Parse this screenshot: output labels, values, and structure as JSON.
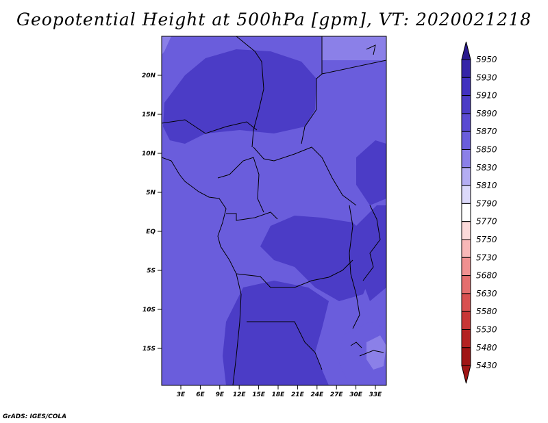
{
  "title": "Geopotential Height at 500hPa [gpm], VT: 2020021218",
  "credit": "GrADS: IGES/COLA",
  "map": {
    "lat_labels": [
      "20N",
      "15N",
      "10N",
      "5N",
      "EQ",
      "5S",
      "10S",
      "15S"
    ],
    "lon_labels": [
      "3E",
      "6E",
      "9E",
      "12E",
      "15E",
      "18E",
      "21E",
      "24E",
      "27E",
      "30E",
      "33E"
    ]
  },
  "colorbar": {
    "levels": [
      "5950",
      "5930",
      "5910",
      "5890",
      "5870",
      "5850",
      "5830",
      "5810",
      "5790",
      "5770",
      "5750",
      "5730",
      "5680",
      "5630",
      "5580",
      "5530",
      "5480",
      "5430"
    ],
    "colors": [
      "#2a1a8e",
      "#3524a8",
      "#4131c0",
      "#4b3cc6",
      "#5a4ad2",
      "#6a5ddc",
      "#8b80e8",
      "#b4adf2",
      "#dcd9fa",
      "#ffffff",
      "#fcdada",
      "#f8b8b8",
      "#f09090",
      "#e46e6e",
      "#d85050",
      "#c83636",
      "#b42222",
      "#a01414"
    ]
  }
}
